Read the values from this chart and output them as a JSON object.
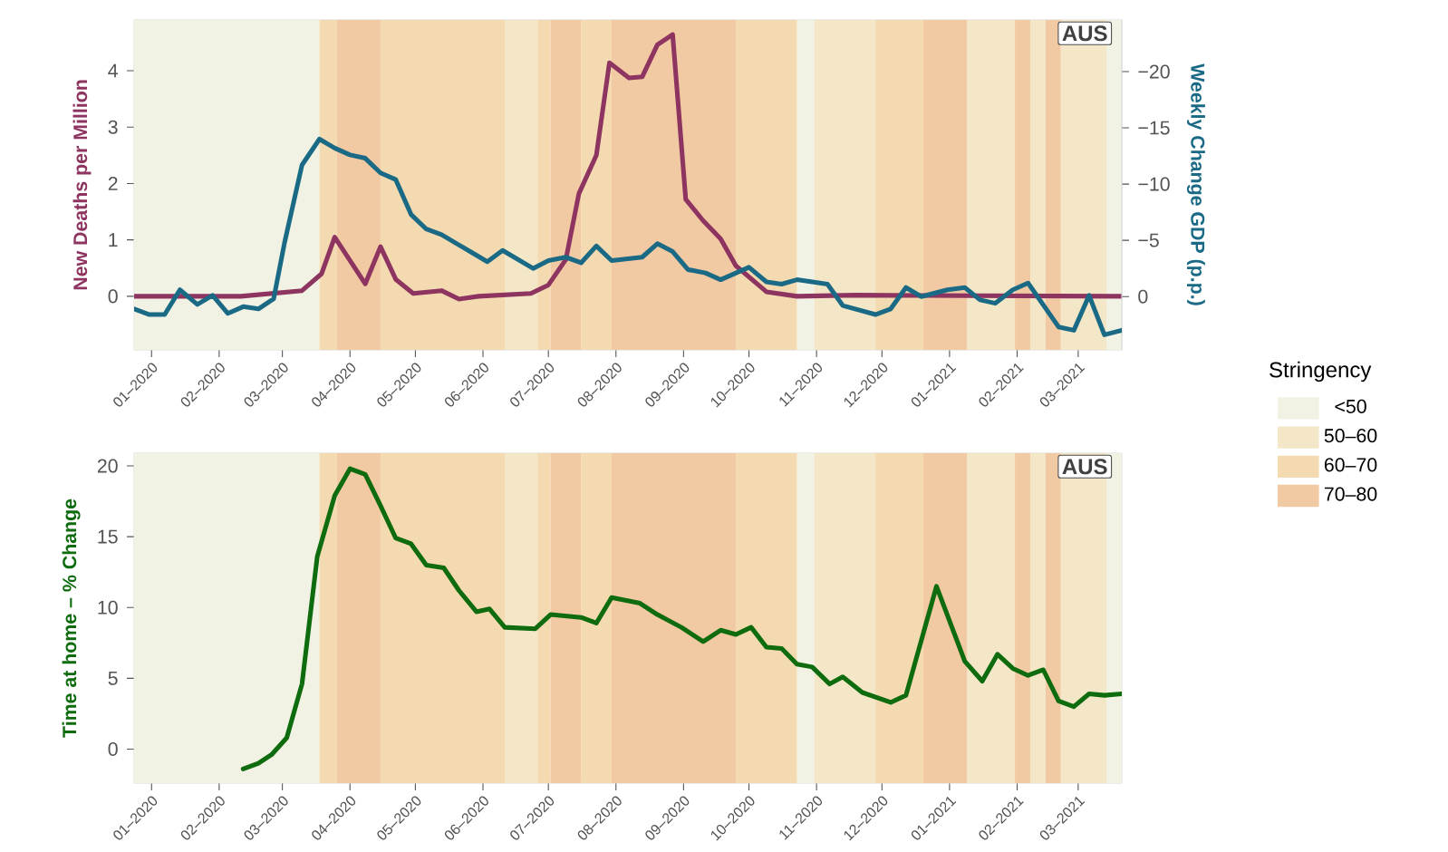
{
  "chart_data": [
    {
      "type": "line",
      "ylabel": "New Deaths per Million",
      "y2label": "Weekly Change GDP (p.p.)",
      "annotations": [
        "AUS"
      ],
      "legend": "right",
      "legend_title": "Stringency",
      "xlim": [
        "2019-12-24",
        "2021-03-21"
      ],
      "xticks": [
        {
          "value": "2020-01-01",
          "label": "01–2020"
        },
        {
          "value": "2020-02-01",
          "label": "02–2020"
        },
        {
          "value": "2020-03-01",
          "label": "03–2020"
        },
        {
          "value": "2020-04-01",
          "label": "04–2020"
        },
        {
          "value": "2020-05-01",
          "label": "05–2020"
        },
        {
          "value": "2020-06-01",
          "label": "06–2020"
        },
        {
          "value": "2020-07-01",
          "label": "07–2020"
        },
        {
          "value": "2020-08-01",
          "label": "08–2020"
        },
        {
          "value": "2020-09-01",
          "label": "09–2020"
        },
        {
          "value": "2020-10-01",
          "label": "10–2020"
        },
        {
          "value": "2020-11-01",
          "label": "11–2020"
        },
        {
          "value": "2020-12-01",
          "label": "12–2020"
        },
        {
          "value": "2021-01-01",
          "label": "01–2021"
        },
        {
          "value": "2021-02-01",
          "label": "02–2021"
        },
        {
          "value": "2021-03-01",
          "label": "03–2021"
        }
      ],
      "ylim": [
        -0.95,
        4.9
      ],
      "yticks": [
        0,
        1,
        2,
        3,
        4
      ],
      "y2lim": [
        4.74,
        -24.6
      ],
      "y2ticks": [
        {
          "value": -20,
          "label": "−20"
        },
        {
          "value": -15,
          "label": "−15"
        },
        {
          "value": -10,
          "label": "−10"
        },
        {
          "value": -5,
          "label": "−5"
        },
        0
      ],
      "bands": [
        {
          "axis": "x",
          "from": "2019-12-24",
          "to": "2020-03-18",
          "label": "<50",
          "color": "#f1f2e3"
        },
        {
          "axis": "x",
          "from": "2020-10-23",
          "to": "2020-10-31",
          "color": "#f1f2e3"
        },
        {
          "axis": "x",
          "from": "2021-03-14",
          "to": "2021-03-21",
          "color": "#f1f2e3"
        },
        {
          "axis": "x",
          "from": "2020-06-11",
          "to": "2020-06-26",
          "label": "50–60",
          "color": "#f3e7c7"
        },
        {
          "axis": "x",
          "from": "2020-10-31",
          "to": "2020-11-28",
          "color": "#f3e7c7"
        },
        {
          "axis": "x",
          "from": "2021-01-09",
          "to": "2021-01-31",
          "color": "#f3e7c7"
        },
        {
          "axis": "x",
          "from": "2021-02-07",
          "to": "2021-02-14",
          "color": "#f3e7c7"
        },
        {
          "axis": "x",
          "from": "2021-02-21",
          "to": "2021-03-14",
          "color": "#f3e7c7"
        },
        {
          "axis": "x",
          "from": "2020-03-18",
          "to": "2020-03-26",
          "label": "60–70",
          "color": "#f3dab0"
        },
        {
          "axis": "x",
          "from": "2020-04-15",
          "to": "2020-06-11",
          "color": "#f3dab0"
        },
        {
          "axis": "x",
          "from": "2020-06-26",
          "to": "2020-07-02",
          "color": "#f3dab0"
        },
        {
          "axis": "x",
          "from": "2020-07-16",
          "to": "2020-07-30",
          "color": "#f3dab0"
        },
        {
          "axis": "x",
          "from": "2020-09-25",
          "to": "2020-10-23",
          "color": "#f3dab0"
        },
        {
          "axis": "x",
          "from": "2020-11-28",
          "to": "2020-12-20",
          "color": "#f3dab0"
        },
        {
          "axis": "x",
          "from": "2020-03-26",
          "to": "2020-04-15",
          "label": "70–80",
          "color": "#f1c9a3"
        },
        {
          "axis": "x",
          "from": "2020-07-02",
          "to": "2020-07-16",
          "color": "#f1c9a3"
        },
        {
          "axis": "x",
          "from": "2020-07-30",
          "to": "2020-09-25",
          "color": "#f1c9a3"
        },
        {
          "axis": "x",
          "from": "2020-12-20",
          "to": "2021-01-09",
          "color": "#f1c9a3"
        },
        {
          "axis": "x",
          "from": "2021-01-31",
          "to": "2021-02-07",
          "color": "#f1c9a3"
        },
        {
          "axis": "x",
          "from": "2021-02-14",
          "to": "2021-02-21",
          "color": "#f1c9a3"
        }
      ],
      "series": [
        {
          "color": "#8e3461",
          "x": [
            "2019-12-24",
            "2020-02-11",
            "2020-03-10",
            "2020-03-19",
            "2020-03-25",
            "2020-04-08",
            "2020-04-15",
            "2020-04-22",
            "2020-04-30",
            "2020-05-13",
            "2020-05-21",
            "2020-05-30",
            "2020-06-23",
            "2020-07-01",
            "2020-07-09",
            "2020-07-15",
            "2020-07-23",
            "2020-07-29",
            "2020-08-07",
            "2020-08-13",
            "2020-08-20",
            "2020-08-27",
            "2020-09-02",
            "2020-09-10",
            "2020-09-18",
            "2020-09-25",
            "2020-10-09",
            "2020-10-23",
            "2020-11-19",
            "2021-03-21"
          ],
          "values": [
            0,
            0,
            0.1,
            0.4,
            1.05,
            0.22,
            0.88,
            0.3,
            0.05,
            0.1,
            -0.05,
            0,
            0.05,
            0.2,
            0.65,
            1.82,
            2.5,
            4.14,
            3.87,
            3.89,
            4.46,
            4.64,
            1.72,
            1.34,
            1.02,
            0.54,
            0.08,
            0,
            0.02,
            0
          ]
        },
        {
          "color": "#1a6a86",
          "axis": "y2",
          "x": [
            "2019-12-24",
            "2019-12-31",
            "2020-01-07",
            "2020-01-14",
            "2020-01-22",
            "2020-01-29",
            "2020-02-05",
            "2020-02-12",
            "2020-02-19",
            "2020-02-26",
            "2020-03-02",
            "2020-03-10",
            "2020-03-18",
            "2020-03-25",
            "2020-04-01",
            "2020-04-08",
            "2020-04-15",
            "2020-04-22",
            "2020-04-29",
            "2020-05-06",
            "2020-05-13",
            "2020-05-27",
            "2020-06-03",
            "2020-06-10",
            "2020-06-24",
            "2020-07-01",
            "2020-07-09",
            "2020-07-16",
            "2020-07-23",
            "2020-07-30",
            "2020-08-13",
            "2020-08-20",
            "2020-08-27",
            "2020-09-03",
            "2020-09-11",
            "2020-09-18",
            "2020-10-01",
            "2020-10-09",
            "2020-10-16",
            "2020-10-23",
            "2020-11-06",
            "2020-11-13",
            "2020-11-28",
            "2020-12-05",
            "2020-12-12",
            "2020-12-19",
            "2020-12-31",
            "2021-01-08",
            "2021-01-15",
            "2021-01-22",
            "2021-01-30",
            "2021-02-06",
            "2021-02-20",
            "2021-02-27",
            "2021-03-06",
            "2021-03-13",
            "2021-03-21"
          ],
          "values": [
            1.1,
            1.6,
            1.6,
            -0.6,
            0.7,
            -0.1,
            1.5,
            0.9,
            1.1,
            0.2,
            -4.8,
            -11.7,
            -14.0,
            -13.2,
            -12.6,
            -12.3,
            -11.0,
            -10.4,
            -7.3,
            -6.0,
            -5.5,
            -3.9,
            -3.1,
            -4.1,
            -2.5,
            -3.2,
            -3.5,
            -3.0,
            -4.5,
            -3.2,
            -3.5,
            -4.7,
            -4.0,
            -2.4,
            -2.1,
            -1.5,
            -2.6,
            -1.3,
            -1.1,
            -1.5,
            -1.1,
            0.8,
            1.6,
            1.1,
            -0.8,
            0,
            -0.6,
            -0.8,
            0.3,
            0.6,
            -0.6,
            -1.2,
            2.7,
            3.0,
            -0.1,
            3.4,
            3.0
          ]
        }
      ]
    },
    {
      "type": "line",
      "ylabel": "Time at home – % Change",
      "annotations": [
        "AUS"
      ],
      "xlim": [
        "2019-12-24",
        "2021-03-21"
      ],
      "xticks": [
        {
          "value": "2020-01-01",
          "label": "01–2020"
        },
        {
          "value": "2020-02-01",
          "label": "02–2020"
        },
        {
          "value": "2020-03-01",
          "label": "03–2020"
        },
        {
          "value": "2020-04-01",
          "label": "04–2020"
        },
        {
          "value": "2020-05-01",
          "label": "05–2020"
        },
        {
          "value": "2020-06-01",
          "label": "06–2020"
        },
        {
          "value": "2020-07-01",
          "label": "07–2020"
        },
        {
          "value": "2020-08-01",
          "label": "08–2020"
        },
        {
          "value": "2020-09-01",
          "label": "09–2020"
        },
        {
          "value": "2020-10-01",
          "label": "10–2020"
        },
        {
          "value": "2020-11-01",
          "label": "11–2020"
        },
        {
          "value": "2020-12-01",
          "label": "12–2020"
        },
        {
          "value": "2021-01-01",
          "label": "01–2021"
        },
        {
          "value": "2021-02-01",
          "label": "02–2021"
        },
        {
          "value": "2021-03-01",
          "label": "03–2021"
        }
      ],
      "ylim": [
        -2.4,
        20.9
      ],
      "yticks": [
        0,
        5,
        10,
        15,
        20
      ],
      "bands": [
        {
          "axis": "x",
          "from": "2019-12-24",
          "to": "2020-03-18",
          "color": "#f1f2e3"
        },
        {
          "axis": "x",
          "from": "2020-10-23",
          "to": "2020-10-31",
          "color": "#f1f2e3"
        },
        {
          "axis": "x",
          "from": "2021-03-14",
          "to": "2021-03-21",
          "color": "#f1f2e3"
        },
        {
          "axis": "x",
          "from": "2020-06-11",
          "to": "2020-06-26",
          "color": "#f3e7c7"
        },
        {
          "axis": "x",
          "from": "2020-10-31",
          "to": "2020-11-28",
          "color": "#f3e7c7"
        },
        {
          "axis": "x",
          "from": "2021-01-09",
          "to": "2021-01-31",
          "color": "#f3e7c7"
        },
        {
          "axis": "x",
          "from": "2021-02-07",
          "to": "2021-02-14",
          "color": "#f3e7c7"
        },
        {
          "axis": "x",
          "from": "2021-02-21",
          "to": "2021-03-14",
          "color": "#f3e7c7"
        },
        {
          "axis": "x",
          "from": "2020-03-18",
          "to": "2020-03-26",
          "color": "#f3dab0"
        },
        {
          "axis": "x",
          "from": "2020-04-15",
          "to": "2020-06-11",
          "color": "#f3dab0"
        },
        {
          "axis": "x",
          "from": "2020-06-26",
          "to": "2020-07-02",
          "color": "#f3dab0"
        },
        {
          "axis": "x",
          "from": "2020-07-16",
          "to": "2020-07-30",
          "color": "#f3dab0"
        },
        {
          "axis": "x",
          "from": "2020-09-25",
          "to": "2020-10-23",
          "color": "#f3dab0"
        },
        {
          "axis": "x",
          "from": "2020-11-28",
          "to": "2020-12-20",
          "color": "#f3dab0"
        },
        {
          "axis": "x",
          "from": "2020-03-26",
          "to": "2020-04-15",
          "color": "#f1c9a3"
        },
        {
          "axis": "x",
          "from": "2020-07-02",
          "to": "2020-07-16",
          "color": "#f1c9a3"
        },
        {
          "axis": "x",
          "from": "2020-07-30",
          "to": "2020-09-25",
          "color": "#f1c9a3"
        },
        {
          "axis": "x",
          "from": "2020-12-20",
          "to": "2021-01-09",
          "color": "#f1c9a3"
        },
        {
          "axis": "x",
          "from": "2021-01-31",
          "to": "2021-02-07",
          "color": "#f1c9a3"
        },
        {
          "axis": "x",
          "from": "2021-02-14",
          "to": "2021-02-21",
          "color": "#f1c9a3"
        }
      ],
      "series": [
        {
          "color": "#0e6b0e",
          "x": [
            "2020-02-12",
            "2020-02-19",
            "2020-02-25",
            "2020-03-03",
            "2020-03-10",
            "2020-03-17",
            "2020-03-25",
            "2020-04-01",
            "2020-04-08",
            "2020-04-15",
            "2020-04-22",
            "2020-04-29",
            "2020-05-06",
            "2020-05-14",
            "2020-05-21",
            "2020-05-29",
            "2020-06-04",
            "2020-06-11",
            "2020-06-25",
            "2020-07-02",
            "2020-07-16",
            "2020-07-23",
            "2020-07-30",
            "2020-08-12",
            "2020-08-20",
            "2020-08-31",
            "2020-09-10",
            "2020-09-18",
            "2020-09-25",
            "2020-10-02",
            "2020-10-09",
            "2020-10-16",
            "2020-10-23",
            "2020-10-30",
            "2020-11-07",
            "2020-11-13",
            "2020-11-22",
            "2020-12-05",
            "2020-12-12",
            "2020-12-26",
            "2021-01-08",
            "2021-01-16",
            "2021-01-23",
            "2021-01-30",
            "2021-02-06",
            "2021-02-13",
            "2021-02-20",
            "2021-02-27",
            "2021-03-06",
            "2021-03-13",
            "2021-03-21"
          ],
          "values": [
            -1.4,
            -1.0,
            -0.4,
            0.8,
            4.6,
            13.6,
            17.9,
            19.8,
            19.4,
            17.2,
            14.9,
            14.5,
            13.0,
            12.8,
            11.2,
            9.7,
            9.9,
            8.6,
            8.5,
            9.5,
            9.3,
            8.9,
            10.7,
            10.3,
            9.5,
            8.6,
            7.6,
            8.4,
            8.1,
            8.6,
            7.2,
            7.1,
            6.0,
            5.8,
            4.6,
            5.1,
            4.0,
            3.3,
            3.8,
            11.5,
            6.2,
            4.8,
            6.7,
            5.7,
            5.2,
            5.6,
            3.4,
            3.0,
            3.9,
            3.8,
            3.9
          ]
        }
      ]
    }
  ]
}
